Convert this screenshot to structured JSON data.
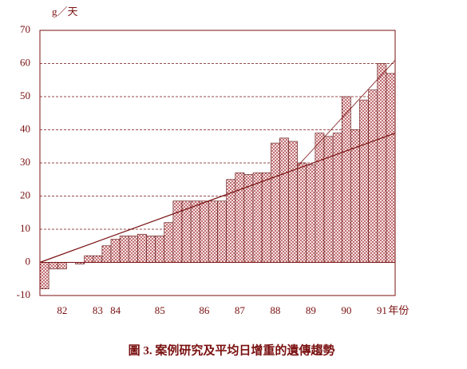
{
  "chart_data": {
    "type": "bar",
    "title": "圖 3. 案例研究及平均日增重的遺傳趨勢",
    "y_label": "g／天",
    "x_label": "年份",
    "categories": [
      null,
      null,
      "82",
      null,
      null,
      null,
      "83",
      null,
      "84",
      null,
      null,
      null,
      null,
      "85",
      null,
      null,
      null,
      null,
      "86",
      null,
      null,
      null,
      "87",
      null,
      null,
      null,
      "88",
      null,
      null,
      null,
      "89",
      null,
      null,
      null,
      "90",
      null,
      null,
      null,
      "91",
      null
    ],
    "values": [
      -8,
      -2,
      -2,
      0,
      -0.5,
      2,
      2,
      5,
      7,
      8,
      8,
      8.5,
      8,
      8,
      12,
      18.5,
      18.5,
      18.5,
      18.5,
      18.5,
      18.5,
      25,
      27,
      26.5,
      27,
      27,
      36,
      37.5,
      36.5,
      30,
      29.5,
      39,
      38,
      39,
      50,
      40,
      49,
      52,
      60,
      57
    ],
    "color": "#c0303a",
    "lines": [
      {
        "x": [
          0,
          40
        ],
        "values": [
          0,
          39
        ]
      },
      {
        "x": [
          29,
          40
        ],
        "values": [
          29,
          61
        ]
      }
    ],
    "ylim": [
      -10,
      70
    ],
    "yticks": [
      -10,
      0,
      10,
      20,
      30,
      40,
      50,
      60,
      70
    ],
    "grid": true
  }
}
